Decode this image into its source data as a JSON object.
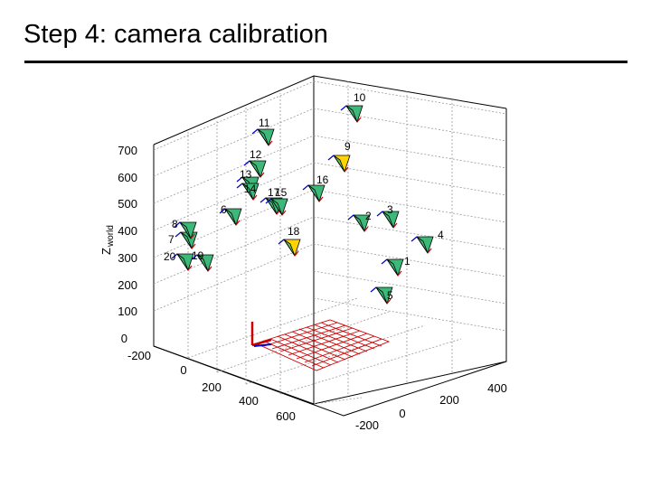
{
  "slide": {
    "title": "Step 4: camera calibration"
  },
  "plot": {
    "z_label": "Z",
    "z_label_sub": "world",
    "z_ticks": [
      "700",
      "600",
      "500",
      "400",
      "300",
      "200",
      "100",
      "0"
    ],
    "x_ticks": [
      "-200",
      "0",
      "200",
      "400",
      "600"
    ],
    "y_ticks": [
      "400",
      "200",
      "0",
      "-200"
    ],
    "colors": {
      "camera_face": "#3cb878",
      "camera_face_alt": "#ffd400",
      "camera_edge": "#000000",
      "grid": "#cc0000",
      "axis_x": "#0000cc",
      "axis_z": "#cc0000",
      "label": "#ff0000"
    },
    "cameras": [
      "1",
      "2",
      "3",
      "4",
      "5",
      "6",
      "7",
      "8",
      "9",
      "10",
      "11",
      "12",
      "13",
      "14",
      "15",
      "16",
      "17",
      "18",
      "19",
      "20"
    ]
  }
}
